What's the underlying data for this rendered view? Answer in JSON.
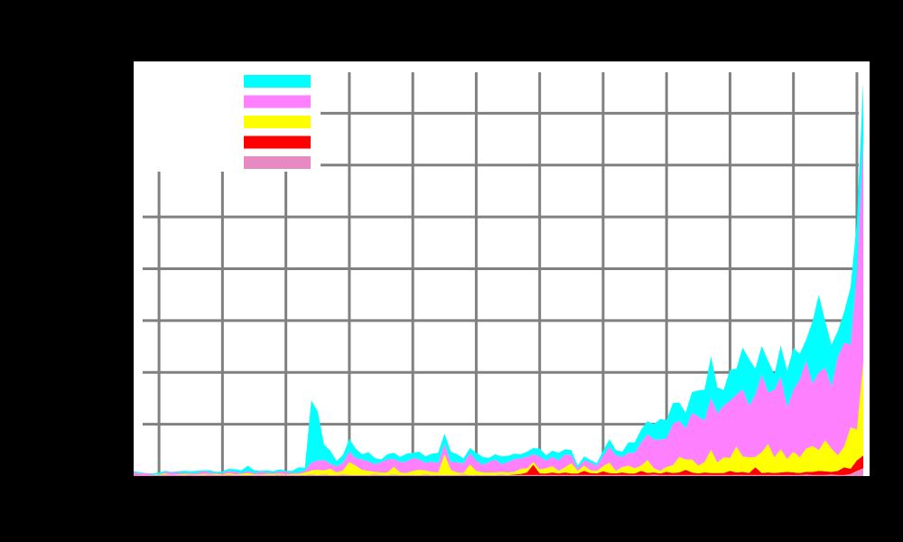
{
  "chart_data": {
    "type": "area",
    "stacked": true,
    "title": "",
    "xlabel": "",
    "ylabel": "",
    "grid": true,
    "legend_position": "top-left",
    "xlim": [
      0,
      116
    ],
    "ylim": [
      0,
      8
    ],
    "x_ticks": [
      4,
      14,
      24,
      34,
      44,
      54,
      64,
      74,
      84,
      94,
      104,
      114
    ],
    "y_ticks": [
      0,
      1,
      2,
      3,
      4,
      5,
      6,
      7,
      8
    ],
    "series": [
      {
        "color": "#e78ac3",
        "values": [
          0.05,
          0.03,
          0.03,
          0.02,
          0.02,
          0.03,
          0.02,
          0.02,
          0.02,
          0.03,
          0.02,
          0.02,
          0.03,
          0.02,
          0.02,
          0.03,
          0.02,
          0.02,
          0.02,
          0.02,
          0.02,
          0.02,
          0.02,
          0.03,
          0.02,
          0.02,
          0.02,
          0.02,
          0.03,
          0.02,
          0.03,
          0.02,
          0.02,
          0.03,
          0.02,
          0.02,
          0.02,
          0.02,
          0.03,
          0.02,
          0.02,
          0.03,
          0.02,
          0.02,
          0.02,
          0.02,
          0.03,
          0.02,
          0.02,
          0.02,
          0.02,
          0.02,
          0.03,
          0.02,
          0.02,
          0.02,
          0.02,
          0.02,
          0.03,
          0.02,
          0.02,
          0.02,
          0.02,
          0.02,
          0.02,
          0.02,
          0.02,
          0.02,
          0.02,
          0.02,
          0.02,
          0.02,
          0.02,
          0.02,
          0.02,
          0.02,
          0.02,
          0.02,
          0.02,
          0.02,
          0.02,
          0.02,
          0.03,
          0.02,
          0.02,
          0.02,
          0.02,
          0.02,
          0.02,
          0.02,
          0.02,
          0.02,
          0.02,
          0.02,
          0.02,
          0.02,
          0.02,
          0.02,
          0.02,
          0.02,
          0.02,
          0.02,
          0.02,
          0.02,
          0.02,
          0.02,
          0.03,
          0.02,
          0.02,
          0.02,
          0.03,
          0.02,
          0.02,
          0.04,
          0.1,
          0.15
        ]
      },
      {
        "color": "#ff0000",
        "values": [
          0.0,
          0.0,
          0.0,
          0.0,
          0.0,
          0.0,
          0.0,
          0.0,
          0.0,
          0.0,
          0.0,
          0.0,
          0.0,
          0.0,
          0.0,
          0.0,
          0.0,
          0.0,
          0.0,
          0.0,
          0.0,
          0.0,
          0.0,
          0.0,
          0.0,
          0.0,
          0.0,
          0.0,
          0.0,
          0.0,
          0.0,
          0.0,
          0.0,
          0.0,
          0.0,
          0.0,
          0.0,
          0.0,
          0.0,
          0.0,
          0.0,
          0.0,
          0.0,
          0.0,
          0.0,
          0.0,
          0.0,
          0.0,
          0.0,
          0.0,
          0.0,
          0.0,
          0.0,
          0.0,
          0.0,
          0.0,
          0.0,
          0.0,
          0.0,
          0.0,
          0.01,
          0.02,
          0.05,
          0.2,
          0.03,
          0.03,
          0.05,
          0.03,
          0.05,
          0.03,
          0.03,
          0.08,
          0.04,
          0.03,
          0.07,
          0.04,
          0.03,
          0.05,
          0.03,
          0.03,
          0.08,
          0.04,
          0.04,
          0.03,
          0.06,
          0.04,
          0.05,
          0.1,
          0.05,
          0.03,
          0.05,
          0.04,
          0.04,
          0.04,
          0.08,
          0.05,
          0.06,
          0.04,
          0.15,
          0.04,
          0.05,
          0.04,
          0.05,
          0.06,
          0.05,
          0.04,
          0.05,
          0.06,
          0.08,
          0.07,
          0.05,
          0.08,
          0.15,
          0.1,
          0.2,
          0.25
        ]
      },
      {
        "color": "#ffff00",
        "values": [
          0.0,
          0.0,
          0.0,
          0.0,
          0.01,
          0.02,
          0.0,
          0.01,
          0.02,
          0.01,
          0.01,
          0.02,
          0.01,
          0.02,
          0.01,
          0.03,
          0.01,
          0.02,
          0.04,
          0.01,
          0.01,
          0.02,
          0.02,
          0.02,
          0.01,
          0.02,
          0.02,
          0.05,
          0.08,
          0.1,
          0.08,
          0.12,
          0.05,
          0.08,
          0.25,
          0.18,
          0.1,
          0.08,
          0.05,
          0.05,
          0.05,
          0.15,
          0.05,
          0.04,
          0.08,
          0.1,
          0.08,
          0.06,
          0.05,
          0.4,
          0.1,
          0.05,
          0.03,
          0.2,
          0.08,
          0.05,
          0.05,
          0.05,
          0.05,
          0.05,
          0.05,
          0.1,
          0.08,
          0.05,
          0.08,
          0.1,
          0.12,
          0.05,
          0.1,
          0.2,
          0.05,
          0.1,
          0.05,
          0.05,
          0.1,
          0.2,
          0.05,
          0.1,
          0.15,
          0.1,
          0.1,
          0.25,
          0.08,
          0.05,
          0.1,
          0.15,
          0.3,
          0.2,
          0.25,
          0.15,
          0.2,
          0.45,
          0.2,
          0.3,
          0.25,
          0.5,
          0.3,
          0.3,
          0.2,
          0.4,
          0.55,
          0.3,
          0.45,
          0.25,
          0.4,
          0.3,
          0.45,
          0.5,
          0.4,
          0.6,
          0.45,
          0.3,
          0.4,
          0.8,
          0.6,
          1.8
        ]
      },
      {
        "color": "#ff80ff",
        "values": [
          0.03,
          0.02,
          0.03,
          0.01,
          0.0,
          0.03,
          0.05,
          0.04,
          0.02,
          0.02,
          0.03,
          0.05,
          0.03,
          0.02,
          0.03,
          0.04,
          0.05,
          0.02,
          0.04,
          0.03,
          0.05,
          0.03,
          0.02,
          0.04,
          0.05,
          0.02,
          0.03,
          0.04,
          0.15,
          0.18,
          0.2,
          0.1,
          0.12,
          0.15,
          0.2,
          0.15,
          0.2,
          0.18,
          0.15,
          0.2,
          0.25,
          0.15,
          0.2,
          0.22,
          0.25,
          0.2,
          0.15,
          0.2,
          0.18,
          0.2,
          0.15,
          0.2,
          0.18,
          0.22,
          0.2,
          0.15,
          0.2,
          0.25,
          0.15,
          0.2,
          0.25,
          0.2,
          0.22,
          0.15,
          0.25,
          0.15,
          0.18,
          0.2,
          0.25,
          0.15,
          0.05,
          0.1,
          0.15,
          0.1,
          0.2,
          0.3,
          0.3,
          0.2,
          0.25,
          0.3,
          0.45,
          0.5,
          0.55,
          0.6,
          0.55,
          0.8,
          0.7,
          0.6,
          0.9,
          0.95,
          0.8,
          1.0,
          0.95,
          1.0,
          1.1,
          1.0,
          1.3,
          1.0,
          1.2,
          1.5,
          1.0,
          1.3,
          1.4,
          1.0,
          1.2,
          1.5,
          1.7,
          1.2,
          1.5,
          1.4,
          1.2,
          1.9,
          2.0,
          1.6,
          3.0,
          4.3
        ]
      },
      {
        "color": "#00ffff",
        "values": [
          0.02,
          0.02,
          0.0,
          0.02,
          0.04,
          0.02,
          0.01,
          0.02,
          0.04,
          0.03,
          0.04,
          0.02,
          0.04,
          0.02,
          0.03,
          0.04,
          0.05,
          0.05,
          0.1,
          0.05,
          0.02,
          0.04,
          0.03,
          0.04,
          0.02,
          0.04,
          0.1,
          0.05,
          1.2,
          0.95,
          0.3,
          0.25,
          0.1,
          0.15,
          0.25,
          0.18,
          0.1,
          0.18,
          0.12,
          0.05,
          0.1,
          0.12,
          0.1,
          0.15,
          0.1,
          0.15,
          0.12,
          0.15,
          0.2,
          0.2,
          0.2,
          0.15,
          0.1,
          0.1,
          0.15,
          0.15,
          0.08,
          0.1,
          0.15,
          0.12,
          0.1,
          0.08,
          0.1,
          0.12,
          0.15,
          0.1,
          0.12,
          0.15,
          0.1,
          0.1,
          0.05,
          0.08,
          0.05,
          0.05,
          0.1,
          0.15,
          0.1,
          0.1,
          0.2,
          0.2,
          0.25,
          0.25,
          0.3,
          0.4,
          0.35,
          0.4,
          0.35,
          0.3,
          0.4,
          0.5,
          0.6,
          0.8,
          0.5,
          0.3,
          0.6,
          0.5,
          0.8,
          0.9,
          0.5,
          0.55,
          0.6,
          0.3,
          0.6,
          0.7,
          0.8,
          0.5,
          0.4,
          1.2,
          1.5,
          0.9,
          0.8,
          0.5,
          0.6,
          1.1,
          1.0,
          1.1
        ]
      }
    ],
    "legend_colors": [
      "#00ffff",
      "#ff80ff",
      "#ffff00",
      "#ff0000",
      "#e78ac3"
    ]
  }
}
